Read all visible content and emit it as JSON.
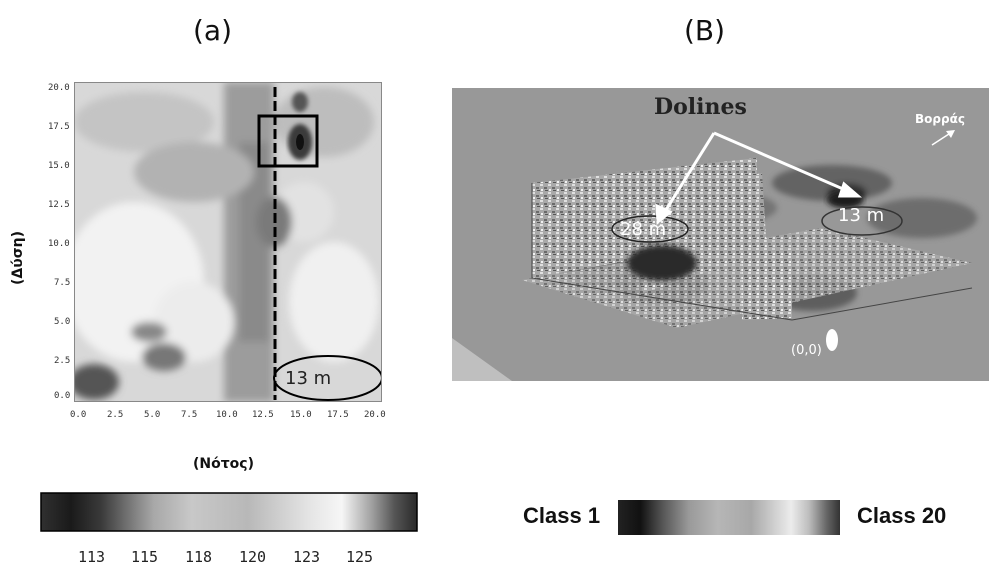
{
  "panel_a": {
    "label": "(a)",
    "y_axis_title": "(Δύση)",
    "x_axis_title": "(Νότος)",
    "y_ticks": [
      "20.0",
      "17.5",
      "15.0",
      "12.5",
      "10.0",
      "7.5",
      "5.0",
      "2.5",
      "0.0"
    ],
    "x_ticks": [
      "0.0",
      "2.5",
      "5.0",
      "7.5",
      "10.0",
      "12.5",
      "15.0",
      "17.5",
      "20.0"
    ],
    "annotation": "13 m"
  },
  "panel_b": {
    "label": "(B)",
    "title": "Dolines",
    "north_label": "Βορράς",
    "doline_left": "28 m",
    "doline_right": "13 m",
    "origin": "(0,0)"
  },
  "colorbar_a": {
    "ticks": [
      "113",
      "115",
      "118",
      "120",
      "123",
      "125"
    ]
  },
  "colorbar_b": {
    "left_label": "Class 1",
    "right_label": "Class 20"
  },
  "colors": {
    "dark": "#222222",
    "mid": "#9a9a9a",
    "light": "#e8e8e8",
    "panel_b_bg": "#8f8f8f"
  }
}
